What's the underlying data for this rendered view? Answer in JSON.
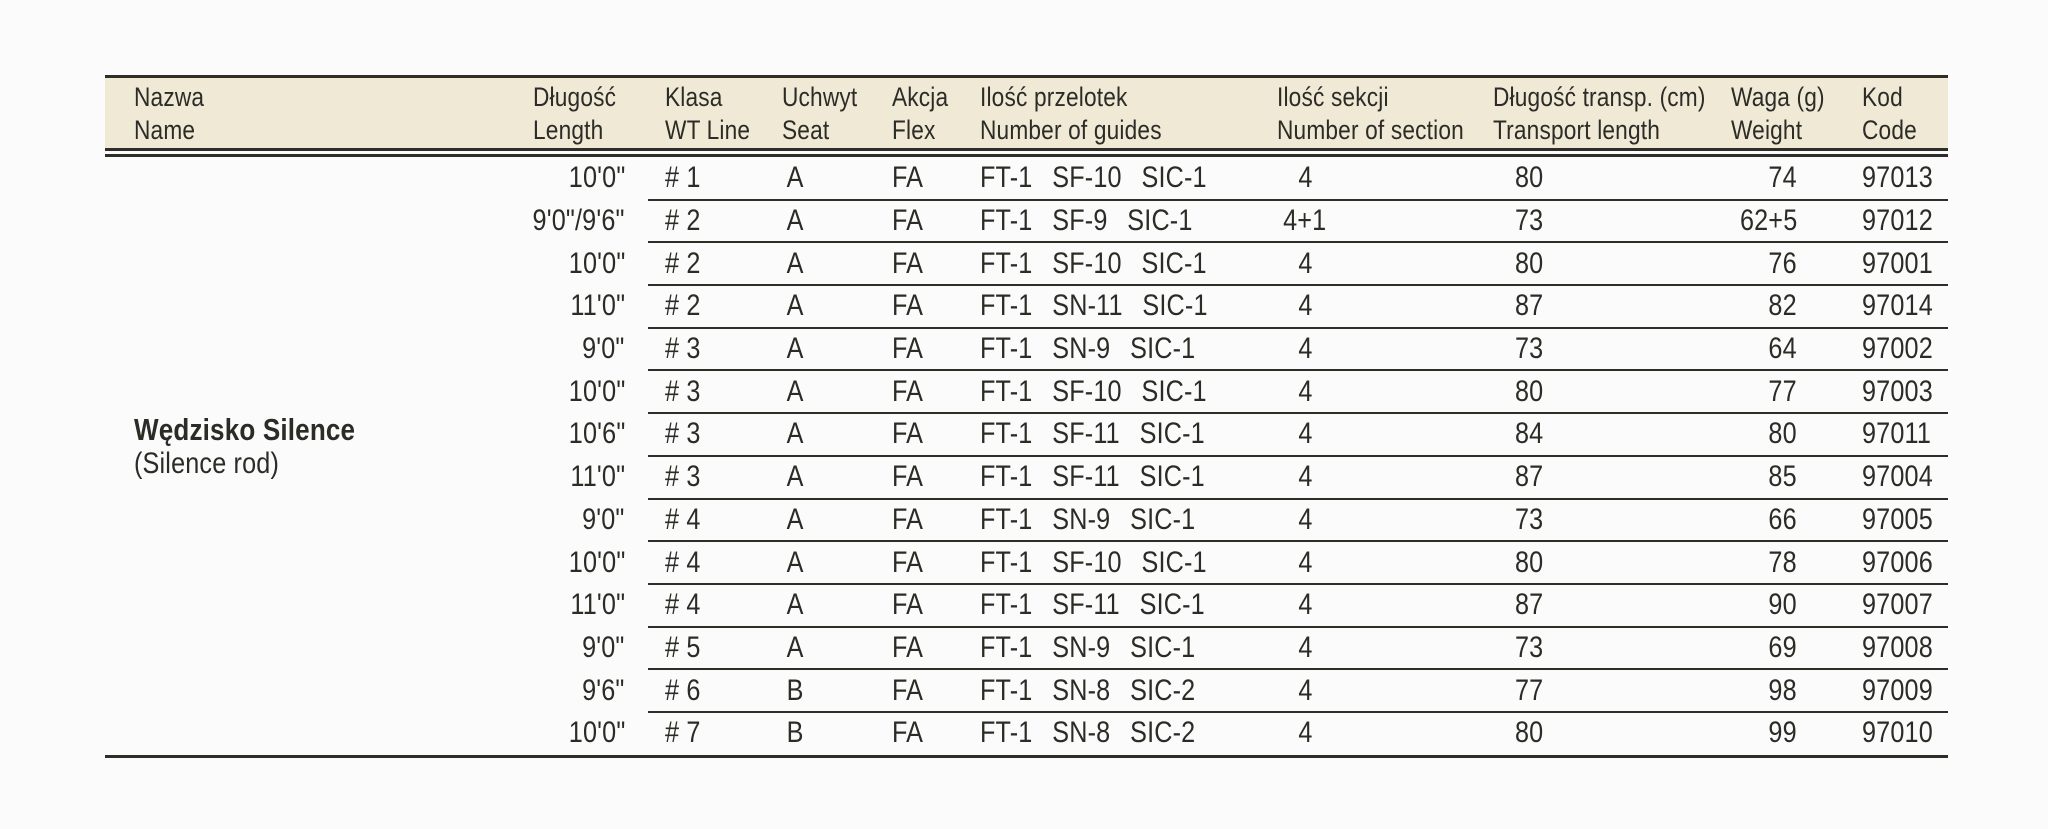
{
  "table": {
    "product": {
      "name_pl": "Wędzisko Silence",
      "name_en": "(Silence rod)"
    },
    "columns": [
      {
        "id": "name",
        "pl": "Nazwa",
        "en": "Name"
      },
      {
        "id": "length",
        "pl": "Długość",
        "en": "Length"
      },
      {
        "id": "wt_line",
        "pl": "Klasa",
        "en": "WT Line"
      },
      {
        "id": "seat",
        "pl": "Uchwyt",
        "en": "Seat"
      },
      {
        "id": "flex",
        "pl": "Akcja",
        "en": "Flex"
      },
      {
        "id": "guides",
        "pl": "Ilość przelotek",
        "en": "Number of guides"
      },
      {
        "id": "sections",
        "pl": "Ilość sekcji",
        "en": "Number of section"
      },
      {
        "id": "transport",
        "pl": "Długość transp. (cm)",
        "en": "Transport length"
      },
      {
        "id": "weight",
        "pl": "Waga (g)",
        "en": "Weight"
      },
      {
        "id": "code",
        "pl": "Kod",
        "en": "Code"
      }
    ],
    "rows": [
      {
        "length": "10'0\"",
        "wt_line": "# 1",
        "seat": "A",
        "flex": "FA",
        "guides": "FT-1 SF-10 SIC-1",
        "sections": "4",
        "transport": "80",
        "weight": "74",
        "code": "97013"
      },
      {
        "length": "9'0\"/9'6\"",
        "wt_line": "# 2",
        "seat": "A",
        "flex": "FA",
        "guides": "FT-1 SF-9 SIC-1",
        "sections": "4+1",
        "transport": "73",
        "weight": "62+5",
        "code": "97012"
      },
      {
        "length": "10'0\"",
        "wt_line": "# 2",
        "seat": "A",
        "flex": "FA",
        "guides": "FT-1 SF-10 SIC-1",
        "sections": "4",
        "transport": "80",
        "weight": "76",
        "code": "97001"
      },
      {
        "length": "11'0\"",
        "wt_line": "# 2",
        "seat": "A",
        "flex": "FA",
        "guides": "FT-1 SN-11 SIC-1",
        "sections": "4",
        "transport": "87",
        "weight": "82",
        "code": "97014"
      },
      {
        "length": "9'0\"",
        "wt_line": "# 3",
        "seat": "A",
        "flex": "FA",
        "guides": "FT-1 SN-9 SIC-1",
        "sections": "4",
        "transport": "73",
        "weight": "64",
        "code": "97002"
      },
      {
        "length": "10'0\"",
        "wt_line": "# 3",
        "seat": "A",
        "flex": "FA",
        "guides": "FT-1 SF-10 SIC-1",
        "sections": "4",
        "transport": "80",
        "weight": "77",
        "code": "97003"
      },
      {
        "length": "10'6\"",
        "wt_line": "# 3",
        "seat": "A",
        "flex": "FA",
        "guides": "FT-1 SF-11 SIC-1",
        "sections": "4",
        "transport": "84",
        "weight": "80",
        "code": "97011"
      },
      {
        "length": "11'0\"",
        "wt_line": "# 3",
        "seat": "A",
        "flex": "FA",
        "guides": "FT-1 SF-11 SIC-1",
        "sections": "4",
        "transport": "87",
        "weight": "85",
        "code": "97004"
      },
      {
        "length": "9'0\"",
        "wt_line": "# 4",
        "seat": "A",
        "flex": "FA",
        "guides": "FT-1 SN-9 SIC-1",
        "sections": "4",
        "transport": "73",
        "weight": "66",
        "code": "97005"
      },
      {
        "length": "10'0\"",
        "wt_line": "# 4",
        "seat": "A",
        "flex": "FA",
        "guides": "FT-1 SF-10 SIC-1",
        "sections": "4",
        "transport": "80",
        "weight": "78",
        "code": "97006"
      },
      {
        "length": "11'0\"",
        "wt_line": "# 4",
        "seat": "A",
        "flex": "FA",
        "guides": "FT-1 SF-11 SIC-1",
        "sections": "4",
        "transport": "87",
        "weight": "90",
        "code": "97007"
      },
      {
        "length": "9'0\"",
        "wt_line": "# 5",
        "seat": "A",
        "flex": "FA",
        "guides": "FT-1 SN-9 SIC-1",
        "sections": "4",
        "transport": "73",
        "weight": "69",
        "code": "97008"
      },
      {
        "length": "9'6\"",
        "wt_line": "# 6",
        "seat": "B",
        "flex": "FA",
        "guides": "FT-1 SN-8 SIC-2",
        "sections": "4",
        "transport": "77",
        "weight": "98",
        "code": "97009"
      },
      {
        "length": "10'0\"",
        "wt_line": "# 7",
        "seat": "B",
        "flex": "FA",
        "guides": "FT-1 SN-8 SIC-2",
        "sections": "4",
        "transport": "80",
        "weight": "99",
        "code": "97010"
      }
    ],
    "colors": {
      "page_bg": "#fbfbfb",
      "header_bg": "#f0e9d6",
      "rule_line": "#2e2e29",
      "text": "#2c2c27"
    }
  }
}
